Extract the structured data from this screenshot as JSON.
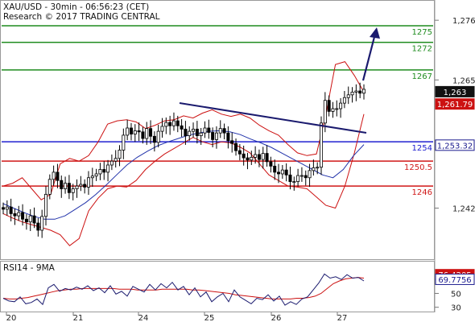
{
  "header": {
    "line1": "XAU/USD - 30min - 06:56:23 (CET)",
    "line2": "Research © 2017 TRADING CENTRAL"
  },
  "colors": {
    "green": "#1f8c1f",
    "blue": "#2020d0",
    "red": "#d01818",
    "navy": "#1a1a6e",
    "bollinger": "#cc1111",
    "ma": "#2233aa",
    "price": "#000000",
    "rsi": "#1a1a6e",
    "rsi_ma": "#cc1111"
  },
  "chart_data": [
    {
      "type": "candlestick",
      "title": "XAU/USD - 30min - 06:56:23 (CET)",
      "ylim": [
        1234.5,
        1278.5
      ],
      "y_ticks": [
        "1,276",
        "1,265",
        "1,242"
      ],
      "x_ticks": [
        "20",
        "21",
        "24",
        "25",
        "26",
        "27"
      ],
      "levels": [
        {
          "label": "1275",
          "value": 1275.0,
          "kind": "resistance"
        },
        {
          "label": "1272",
          "value": 1272.0,
          "kind": "resistance"
        },
        {
          "label": "1267",
          "value": 1267.0,
          "kind": "resistance"
        },
        {
          "label": "1254",
          "value": 1254.0,
          "kind": "pivot"
        },
        {
          "label": "1250.5",
          "value": 1250.5,
          "kind": "support"
        },
        {
          "label": "1246",
          "value": 1246.0,
          "kind": "support"
        }
      ],
      "price_tags": [
        {
          "label": "1,263",
          "value": 1263.0,
          "style": "dark"
        },
        {
          "label": "1,261.79",
          "value": 1261.79,
          "style": "red"
        },
        {
          "label": "1,253.32",
          "value": 1253.32,
          "style": "blue"
        }
      ],
      "series": [
        {
          "values": [
            1241.8,
            1242.2,
            1241.0,
            1240.6,
            1241.2,
            1240.0,
            1239.5,
            1240.6,
            1239.3,
            1238.0,
            1240.5,
            1244.5,
            1247.2,
            1248.5,
            1247.0,
            1245.5,
            1246.5,
            1244.8,
            1245.5,
            1246.0,
            1246.3,
            1245.8,
            1247.5,
            1247.8,
            1248.2,
            1249.0,
            1248.5,
            1249.8,
            1250.5,
            1251.0,
            1252.5,
            1255.2,
            1256.5,
            1255.4,
            1256.0,
            1255.8,
            1254.6,
            1256.4,
            1255.0,
            1253.9,
            1255.9,
            1256.8,
            1257.5,
            1256.9,
            1257.8,
            1256.9,
            1256.3,
            1255.1,
            1255.9,
            1256.3,
            1255.1,
            1255.6,
            1256.5,
            1255.7,
            1254.4,
            1255.6,
            1256.4,
            1255.6,
            1254.2,
            1253.7,
            1252.4,
            1251.8,
            1251.1,
            1250.7,
            1251.2,
            1251.7,
            1250.8,
            1251.9,
            1250.4,
            1249.6,
            1248.5,
            1248.2,
            1248.9,
            1248.0,
            1246.8,
            1246.8,
            1247.9,
            1247.9,
            1247.5,
            1248.8,
            1249.3,
            1249.4,
            1257.4,
            1261.5,
            1259.5,
            1260.0,
            1260.0,
            1261.0,
            1262.0,
            1262.5,
            1263.0,
            1263.2,
            1262.8,
            1263.5
          ]
        },
        {
          "name": "Bollinger upper",
          "values": [
            1246.0,
            1246.5,
            1247.5,
            1245.5,
            1243.5,
            1244.5,
            1250.0,
            1251.0,
            1250.5,
            1251.5,
            1254.0,
            1257.2,
            1257.8,
            1258.0,
            1257.6,
            1256.4,
            1257.0,
            1257.8,
            1258.0,
            1258.7,
            1258.3,
            1259.2,
            1259.8,
            1259.0,
            1258.6,
            1259.0,
            1258.3,
            1257.0,
            1256.0,
            1255.2,
            1253.5,
            1252.0,
            1251.5,
            1251.8,
            1259.0,
            1268.0,
            1268.5,
            1266.0,
            1263.0
          ]
        },
        {
          "name": "Bollinger lower",
          "values": [
            1241.0,
            1240.2,
            1239.5,
            1239.0,
            1238.5,
            1238.0,
            1237.2,
            1235.2,
            1236.5,
            1241.5,
            1243.8,
            1245.5,
            1246.0,
            1245.8,
            1247.0,
            1249.0,
            1250.5,
            1251.8,
            1252.8,
            1253.8,
            1254.8,
            1254.0,
            1253.5,
            1254.0,
            1253.8,
            1253.0,
            1252.0,
            1250.0,
            1248.0,
            1247.0,
            1246.0,
            1245.8,
            1245.5,
            1244.0,
            1242.5,
            1242.0,
            1246.0,
            1252.0,
            1259.0
          ]
        },
        {
          "name": "Moving average",
          "values": [
            1242.8,
            1242.0,
            1241.2,
            1240.5,
            1240.0,
            1240.0,
            1240.6,
            1241.8,
            1243.0,
            1244.5,
            1246.2,
            1248.0,
            1249.8,
            1251.2,
            1252.3,
            1253.3,
            1254.0,
            1254.6,
            1255.2,
            1255.6,
            1255.9,
            1256.0,
            1255.8,
            1255.3,
            1254.5,
            1253.8,
            1253.0,
            1252.0,
            1251.0,
            1250.0,
            1249.0,
            1248.0,
            1247.5,
            1249.0,
            1251.5,
            1253.5
          ]
        }
      ]
    },
    {
      "type": "line",
      "title": "RSI14 - 9MA",
      "ylim": [
        25,
        90
      ],
      "y_ticks": [
        "70",
        "50",
        "30"
      ],
      "value_tags": [
        {
          "label": "76.4205",
          "value": 76.4205,
          "style": "red"
        },
        {
          "label": "69.7756",
          "value": 69.7756,
          "style": "blue"
        }
      ],
      "series": [
        {
          "name": "RSI14",
          "values": [
            43,
            39,
            38,
            45,
            35,
            37,
            42,
            34,
            58,
            63,
            53,
            57,
            55,
            59,
            56,
            61,
            54,
            58,
            51,
            61,
            49,
            53,
            46,
            60,
            56,
            52,
            63,
            55,
            64,
            58,
            66,
            55,
            60,
            48,
            58,
            45,
            52,
            38,
            45,
            50,
            38,
            55,
            45,
            40,
            35,
            43,
            41,
            48,
            39,
            46,
            33,
            38,
            34,
            42,
            45,
            55,
            65,
            78,
            72,
            74,
            70,
            77,
            72,
            73,
            68
          ]
        },
        {
          "name": "9MA",
          "values": [
            43,
            42,
            42,
            43,
            44,
            46,
            48,
            50,
            52,
            54,
            55,
            56,
            56,
            57,
            57,
            57,
            57,
            57,
            57,
            56,
            56,
            56,
            55,
            55,
            55,
            55,
            56,
            56,
            56,
            56,
            56,
            55,
            55,
            54,
            53,
            52,
            51,
            50,
            48,
            47,
            46,
            45,
            44,
            43,
            42,
            42,
            42,
            42,
            43,
            43,
            44,
            46,
            50,
            57,
            64,
            68,
            71,
            72,
            73,
            72
          ]
        }
      ]
    }
  ]
}
